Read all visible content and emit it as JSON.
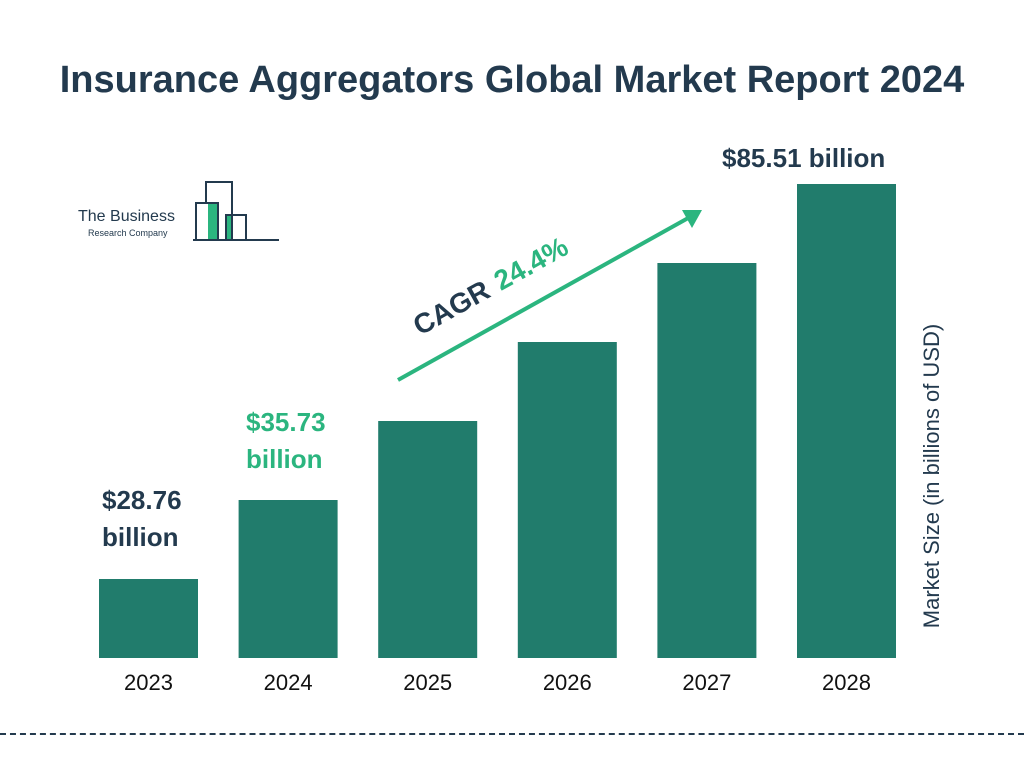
{
  "title": "Insurance Aggregators Global Market Report 2024",
  "logo": {
    "line1": "The Business",
    "line2": "Research Company"
  },
  "colors": {
    "bar": "#217c6c",
    "text": "#233a4e",
    "accent": "#2bb57f"
  },
  "chart_data": {
    "type": "bar",
    "categories": [
      "2023",
      "2024",
      "2025",
      "2026",
      "2027",
      "2028"
    ],
    "values": [
      28.76,
      35.73,
      44.45,
      55.3,
      68.79,
      85.51
    ],
    "data_labels": [
      {
        "category": "2023",
        "text": "$28.76 billion"
      },
      {
        "category": "2024",
        "text": "$35.73 billion"
      },
      {
        "category": "2028",
        "text": "$85.51 billion"
      }
    ],
    "ylabel": "Market Size (in billions of USD)",
    "annotation": {
      "label": "CAGR",
      "value": "24.4%"
    },
    "grid": false
  }
}
